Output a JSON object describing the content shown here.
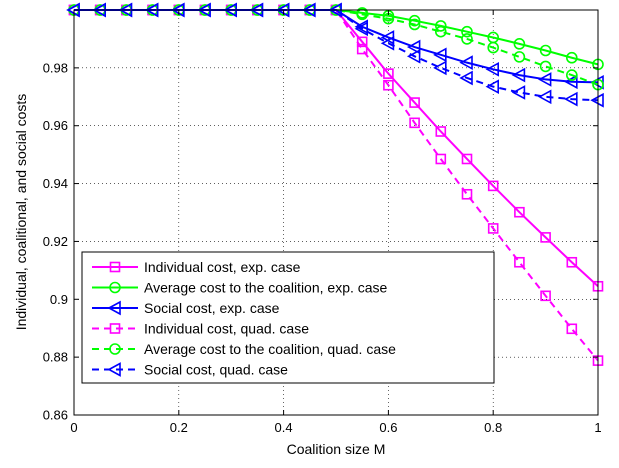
{
  "chart_data": {
    "type": "line",
    "title": "",
    "xlabel": "Coalition size M",
    "ylabel": "Individual, coalitional, and social costs",
    "xlim": [
      0,
      1
    ],
    "ylim": [
      0.86,
      1.0
    ],
    "xticks": [
      0,
      0.2,
      0.4,
      0.6,
      0.8,
      1
    ],
    "xtick_labels": [
      "0",
      "0.2",
      "0.4",
      "0.6",
      "0.8",
      "1"
    ],
    "yticks": [
      0.86,
      0.88,
      0.9,
      0.92,
      0.94,
      0.96,
      0.98
    ],
    "ytick_labels": [
      "0.86",
      "0.88",
      "0.9",
      "0.92",
      "0.94",
      "0.96",
      "0.98"
    ],
    "grid": true,
    "legend_position": "bottom-left",
    "x": [
      0,
      0.05,
      0.1,
      0.15,
      0.2,
      0.25,
      0.3,
      0.35,
      0.4,
      0.45,
      0.5,
      0.55,
      0.6,
      0.65,
      0.7,
      0.75,
      0.8,
      0.85,
      0.9,
      0.95,
      1
    ],
    "series": [
      {
        "name": "Individual cost, exp. case",
        "color": "#ff00ff",
        "line": "solid",
        "marker": "square",
        "values": [
          1.0,
          1.0,
          1.0,
          1.0,
          1.0,
          1.0,
          1.0,
          1.0,
          1.0,
          1.0,
          1.0,
          0.989,
          0.978,
          0.968,
          0.958,
          0.9485,
          0.9392,
          0.9301,
          0.9214,
          0.9128,
          0.9045
        ]
      },
      {
        "name": "Average cost to the coalition, exp. case",
        "color": "#00ff00",
        "line": "solid",
        "marker": "circle",
        "values": [
          1.0,
          1.0,
          1.0,
          1.0,
          1.0,
          1.0,
          1.0,
          1.0,
          1.0,
          1.0,
          1.0,
          0.999,
          0.998,
          0.9963,
          0.9945,
          0.9925,
          0.9905,
          0.9883,
          0.986,
          0.9835,
          0.9812
        ]
      },
      {
        "name": "Social cost, exp. case",
        "color": "#0000ff",
        "line": "solid",
        "marker": "triangle-left",
        "values": [
          1.0,
          1.0,
          1.0,
          1.0,
          1.0,
          1.0,
          1.0,
          1.0,
          1.0,
          1.0,
          1.0,
          0.9942,
          0.9905,
          0.9872,
          0.9845,
          0.9818,
          0.9795,
          0.9775,
          0.976,
          0.9752,
          0.975
        ]
      },
      {
        "name": "Individual cost, quad. case",
        "color": "#ff00ff",
        "line": "dashed",
        "marker": "square",
        "values": [
          1.0,
          1.0,
          1.0,
          1.0,
          1.0,
          1.0,
          1.0,
          1.0,
          1.0,
          1.0,
          1.0,
          0.9865,
          0.974,
          0.961,
          0.9485,
          0.9363,
          0.9245,
          0.9128,
          0.9012,
          0.8898,
          0.8788
        ]
      },
      {
        "name": "Average cost to the coalition, quad. case",
        "color": "#00ff00",
        "line": "dashed",
        "marker": "circle",
        "values": [
          1.0,
          1.0,
          1.0,
          1.0,
          1.0,
          1.0,
          1.0,
          1.0,
          1.0,
          1.0,
          1.0,
          0.9985,
          0.997,
          0.995,
          0.9925,
          0.99,
          0.987,
          0.9838,
          0.9805,
          0.9775,
          0.9742
        ]
      },
      {
        "name": "Social cost, quad. case",
        "color": "#0000ff",
        "line": "dashed",
        "marker": "triangle-left",
        "values": [
          1.0,
          1.0,
          1.0,
          1.0,
          1.0,
          1.0,
          1.0,
          1.0,
          1.0,
          1.0,
          1.0,
          0.9935,
          0.9885,
          0.984,
          0.98,
          0.9765,
          0.9735,
          0.9715,
          0.97,
          0.9692,
          0.9688
        ]
      }
    ]
  }
}
